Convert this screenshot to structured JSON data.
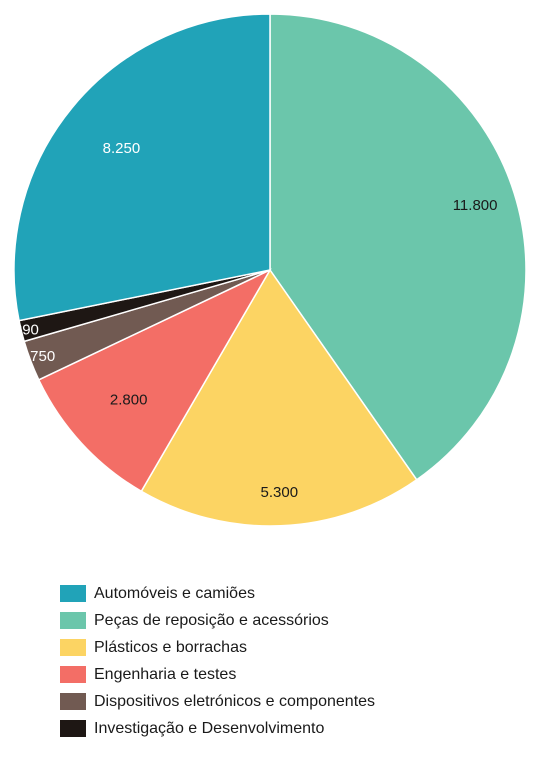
{
  "chart_data": {
    "type": "pie",
    "title": "",
    "legend_position": "bottom",
    "series": [
      {
        "label": "Peças de reposição e acessórios",
        "value_label": "11.800",
        "value": 11800,
        "color": "#6BC6AB",
        "label_color": "#1a1a1a"
      },
      {
        "label": "Plásticos e borrachas",
        "value_label": "5.300",
        "value": 5300,
        "color": "#FCD463",
        "label_color": "#1a1a1a"
      },
      {
        "label": "Engenharia e testes",
        "value_label": "2.800",
        "value": 2800,
        "color": "#F36E66",
        "label_color": "#1a1a1a"
      },
      {
        "label": "Dispositivos eletrónicos e componentes",
        "value_label": "750",
        "value": 750,
        "color": "#715A52",
        "label_color": "#ffffff"
      },
      {
        "label": "Investigação e Desenvolvimento",
        "value_label": "390",
        "value": 390,
        "color": "#1E1714",
        "label_color": "#ffffff"
      },
      {
        "label": "Automóveis e camiões",
        "value_label": "8.250",
        "value": 8250,
        "color": "#21A3B8",
        "label_color": "#ffffff"
      }
    ]
  },
  "legend": {
    "items": [
      {
        "label": "Automóveis e camiões",
        "color": "#21A3B8"
      },
      {
        "label": "Peças de reposição e acessórios",
        "color": "#6BC6AB"
      },
      {
        "label": "Plásticos e borrachas",
        "color": "#FCD463"
      },
      {
        "label": "Engenharia e testes",
        "color": "#F36E66"
      },
      {
        "label": "Dispositivos eletrónicos e componentes",
        "color": "#715A52"
      },
      {
        "label": "Investigação e Desenvolvimento",
        "color": "#1E1714"
      }
    ]
  }
}
